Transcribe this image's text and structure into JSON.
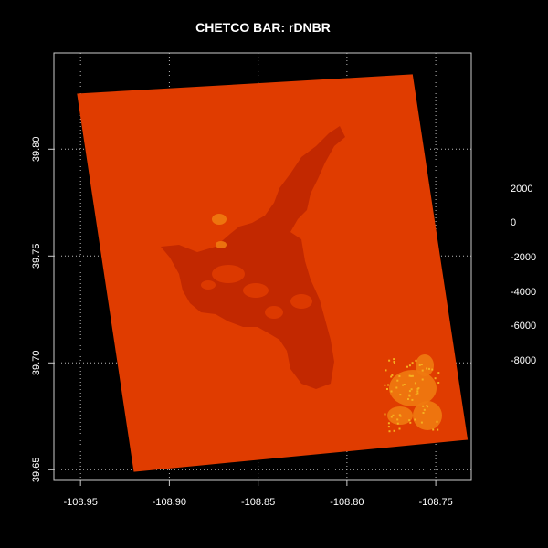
{
  "title": "CHETCO BAR: rDNBR",
  "chart_data": {
    "type": "heatmap",
    "title": "CHETCO BAR: rDNBR",
    "xlim": [
      -108.965,
      -108.73
    ],
    "ylim": [
      39.645,
      39.845
    ],
    "x_ticks": [
      -108.95,
      -108.9,
      -108.85,
      -108.8,
      -108.75
    ],
    "x_tick_labels": [
      "-108.95",
      "-108.90",
      "-108.85",
      "-108.80",
      "-108.75"
    ],
    "y_ticks": [
      39.65,
      39.7,
      39.75,
      39.8
    ],
    "y_tick_labels": [
      "39.65",
      "39.70",
      "39.75",
      "39.80"
    ],
    "grid": true,
    "raster_corners": [
      {
        "lon": -108.952,
        "lat": 39.826
      },
      {
        "lon": -108.763,
        "lat": 39.835
      },
      {
        "lon": -108.732,
        "lat": 39.664
      },
      {
        "lon": -108.92,
        "lat": 39.649
      }
    ],
    "legend": {
      "placement": "right",
      "values": [
        "2000",
        "0",
        "-2000",
        "-4000",
        "-6000",
        "-8000"
      ]
    },
    "colors": {
      "background": "#000000",
      "main_raster": "#e03c00",
      "burn_scar": "#c22800",
      "high_patches": "#f07a10",
      "bright_spots": "#f5b020",
      "grid": "#bbbbbb"
    }
  }
}
